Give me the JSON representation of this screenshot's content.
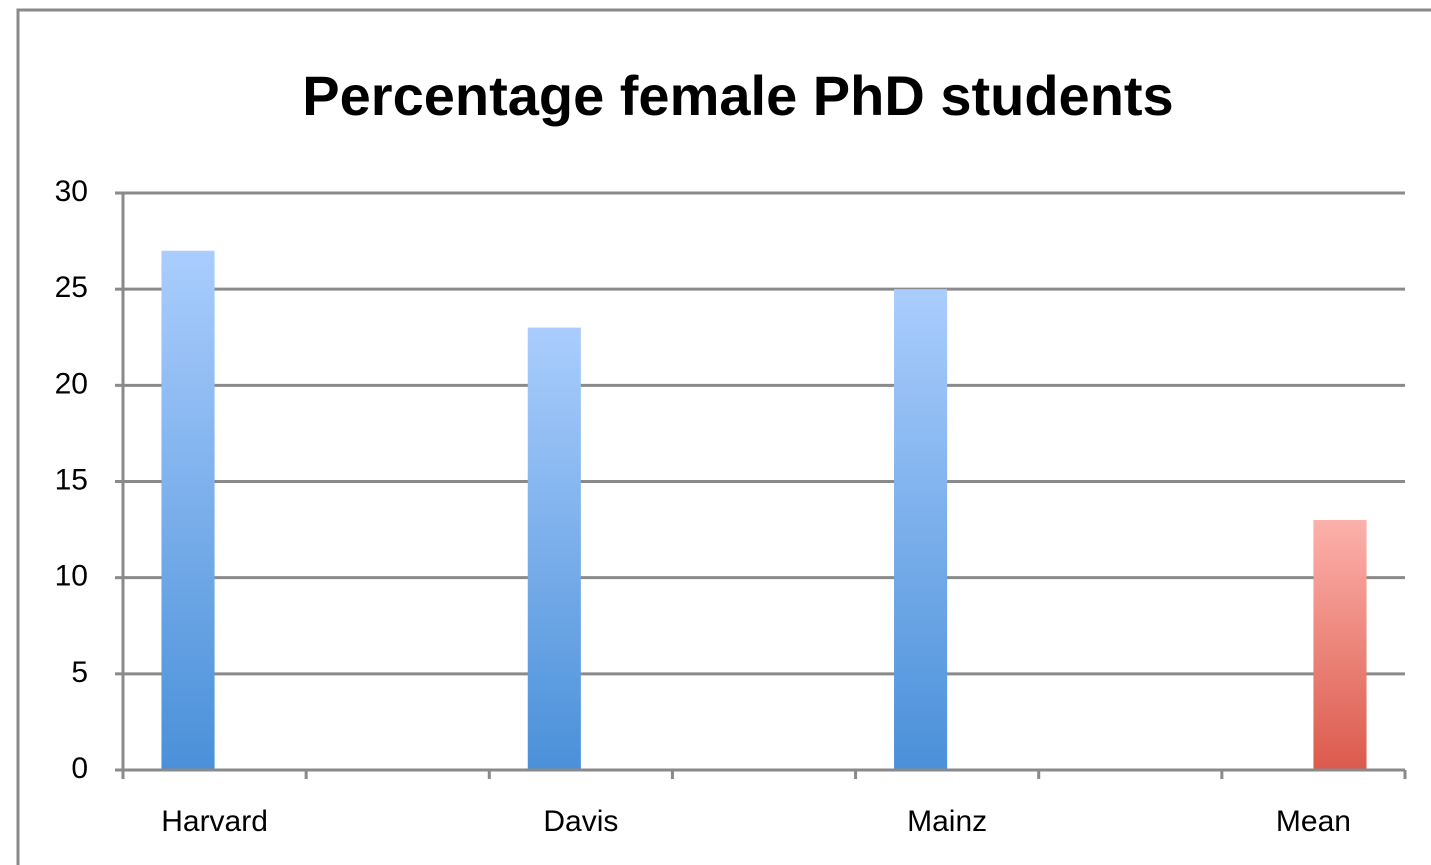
{
  "chart_data": {
    "type": "bar",
    "title": "Percentage female PhD students",
    "categories": [
      "Harvard",
      null,
      "Davis",
      null,
      "Mainz",
      null,
      "Mean"
    ],
    "series": [
      {
        "color": "#4a90d9",
        "values": [
          27,
          null,
          23,
          null,
          25,
          null,
          null
        ]
      },
      {
        "color": "#dc5a4c",
        "values": [
          null,
          null,
          null,
          null,
          null,
          null,
          13
        ]
      }
    ],
    "ylim": [
      0,
      30
    ],
    "yticks": [
      0,
      5,
      10,
      15,
      20,
      25,
      30
    ],
    "grid": true
  }
}
